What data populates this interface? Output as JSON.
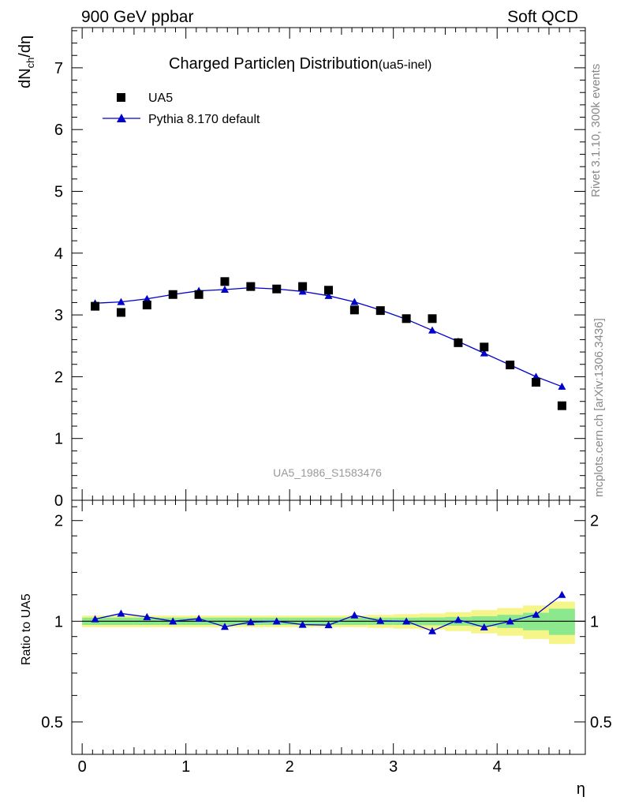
{
  "header": {
    "left": "900 GeV ppbar",
    "right": "Soft QCD"
  },
  "side_labels": {
    "rivet": "Rivet 3.1.10,  300k events",
    "mcplots": "mcplots.cern.ch [arXiv:1306.3436]"
  },
  "colors": {
    "mc_line": "#0000cc",
    "data_marker": "#000000",
    "band_inner": "#8ce88c",
    "band_outer": "#f5f58a",
    "watermark": "#999999",
    "side_text": "#888888"
  },
  "chart_data": [
    {
      "type": "scatter",
      "panel": "main",
      "title_main": "Charged Particle",
      "title_symbol": "η",
      "title_rest": " Distribution",
      "title_tag": "(ua5-inel)",
      "ylabel": "dN",
      "ylabel_sub": "ch",
      "ylabel_tail": "/dη",
      "watermark": "UA5_1986_S1583476",
      "xlim": [
        -0.1,
        4.85
      ],
      "ylim": [
        0,
        7.65
      ],
      "y_ticks": [
        0,
        1,
        2,
        3,
        4,
        5,
        6,
        7
      ],
      "y_tick_labels": [
        "0",
        "1",
        "2",
        "3",
        "4",
        "5",
        "6",
        "7"
      ],
      "legend": [
        {
          "label": "UA5",
          "marker": "square"
        },
        {
          "label": "Pythia 8.170 default",
          "marker": "triangle"
        }
      ],
      "series": [
        {
          "name": "UA5",
          "x": [
            0.125,
            0.375,
            0.625,
            0.875,
            1.125,
            1.375,
            1.625,
            1.875,
            2.125,
            2.375,
            2.625,
            2.875,
            3.125,
            3.375,
            3.625,
            3.875,
            4.125,
            4.375,
            4.625
          ],
          "values": [
            3.14,
            3.04,
            3.16,
            3.33,
            3.33,
            3.54,
            3.46,
            3.42,
            3.46,
            3.4,
            3.08,
            3.07,
            2.94,
            2.94,
            2.55,
            2.48,
            2.19,
            1.91,
            1.53
          ]
        },
        {
          "name": "Pythia 8.170 default",
          "x": [
            0.125,
            0.375,
            0.625,
            0.875,
            1.125,
            1.375,
            1.625,
            1.875,
            2.125,
            2.375,
            2.625,
            2.875,
            3.125,
            3.375,
            3.625,
            3.875,
            4.125,
            4.375,
            4.625
          ],
          "values": [
            3.19,
            3.21,
            3.26,
            3.33,
            3.39,
            3.41,
            3.44,
            3.42,
            3.38,
            3.31,
            3.21,
            3.08,
            2.93,
            2.75,
            2.57,
            2.38,
            2.19,
            2.0,
            1.84
          ]
        }
      ]
    },
    {
      "type": "line",
      "panel": "ratio",
      "ylabel": "Ratio to UA5",
      "xlabel": "η",
      "xlim": [
        -0.1,
        4.85
      ],
      "ylim": [
        0.4,
        2.3
      ],
      "y_scale": "log",
      "y_ticks": [
        0.5,
        1,
        2
      ],
      "y_tick_labels": [
        "0.5",
        "1",
        "2"
      ],
      "x_ticks": [
        0,
        1,
        2,
        3,
        4
      ],
      "x_tick_labels": [
        "0",
        "1",
        "2",
        "3",
        "4"
      ],
      "reference": 1,
      "bin_edges": [
        0.0,
        0.25,
        0.5,
        0.75,
        1.0,
        1.25,
        1.5,
        1.75,
        2.0,
        2.25,
        2.5,
        2.75,
        3.0,
        3.25,
        3.5,
        3.75,
        4.0,
        4.25,
        4.5,
        4.75
      ],
      "band_inner_halfwidth": [
        0.025,
        0.025,
        0.025,
        0.025,
        0.025,
        0.025,
        0.025,
        0.025,
        0.025,
        0.025,
        0.025,
        0.025,
        0.025,
        0.027,
        0.03,
        0.035,
        0.045,
        0.06,
        0.09
      ],
      "band_outer_halfwidth": [
        0.04,
        0.04,
        0.04,
        0.04,
        0.04,
        0.04,
        0.04,
        0.04,
        0.04,
        0.04,
        0.04,
        0.045,
        0.05,
        0.055,
        0.065,
        0.08,
        0.095,
        0.115,
        0.145
      ],
      "series": [
        {
          "name": "Pythia 8.170 default",
          "x": [
            0.125,
            0.375,
            0.625,
            0.875,
            1.125,
            1.375,
            1.625,
            1.875,
            2.125,
            2.375,
            2.625,
            2.875,
            3.125,
            3.375,
            3.625,
            3.875,
            4.125,
            4.375,
            4.625
          ],
          "values": [
            1.015,
            1.055,
            1.03,
            1.0,
            1.018,
            0.963,
            0.994,
            1.0,
            0.977,
            0.974,
            1.042,
            1.003,
            1.0,
            0.935,
            1.01,
            0.96,
            1.0,
            1.047,
            1.2
          ]
        }
      ]
    }
  ]
}
